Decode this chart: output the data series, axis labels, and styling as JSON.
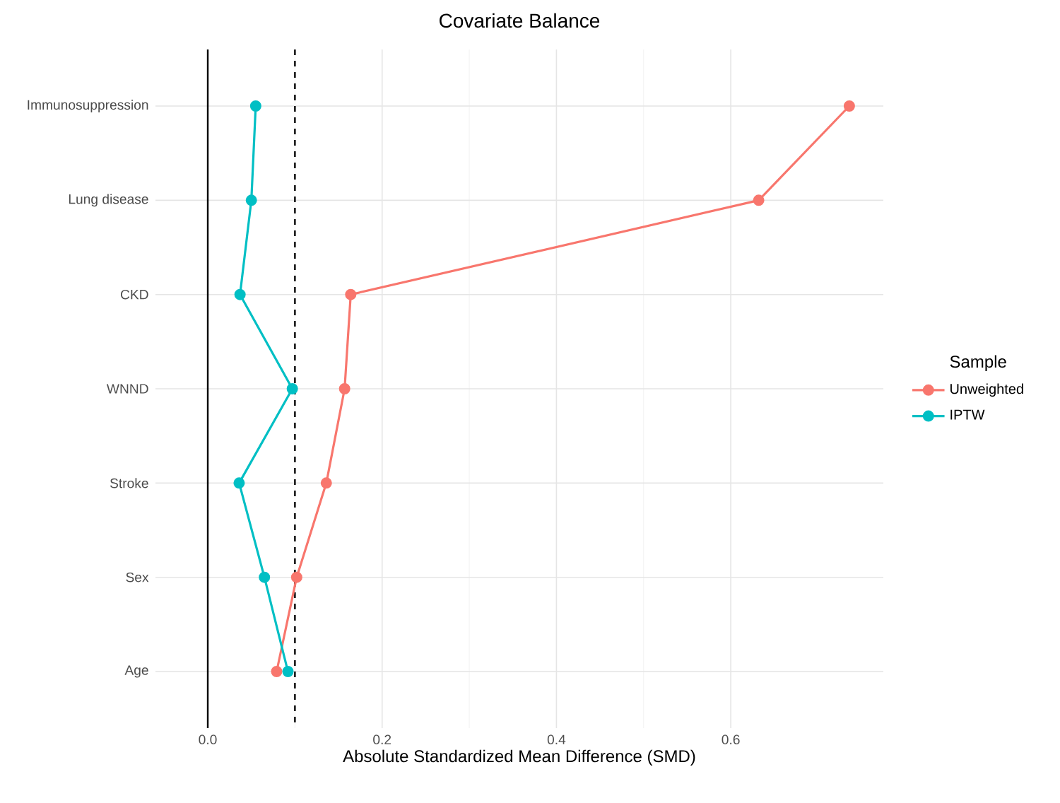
{
  "chart_data": {
    "type": "line",
    "orientation": "horizontal",
    "title": "Covariate Balance",
    "xlabel": "Absolute Standardized Mean Difference (SMD)",
    "categories": [
      "Immunosuppression",
      "Lung disease",
      "CKD",
      "WNND",
      "Stroke",
      "Sex",
      "Age"
    ],
    "series": [
      {
        "name": "Unweighted",
        "color": "#f8766d",
        "values": [
          0.736,
          0.632,
          0.164,
          0.157,
          0.136,
          0.102,
          0.079
        ]
      },
      {
        "name": "IPTW",
        "color": "#00bfc4",
        "values": [
          0.055,
          0.05,
          0.037,
          0.097,
          0.036,
          0.065,
          0.092
        ]
      }
    ],
    "xlim": [
      -0.06,
      0.775
    ],
    "xticks": [
      {
        "value": 0,
        "label": "0.0"
      },
      0.2,
      0.4,
      0.6
    ],
    "ref_lines": [
      {
        "axis": "x",
        "value": 0,
        "line_style": "solid",
        "color": "#000000"
      },
      {
        "axis": "x",
        "value": 0.1,
        "line_style": "dashed",
        "color": "#000000"
      }
    ],
    "grid": true,
    "legend": "right",
    "legend_title": "Sample",
    "marker": "circle"
  }
}
